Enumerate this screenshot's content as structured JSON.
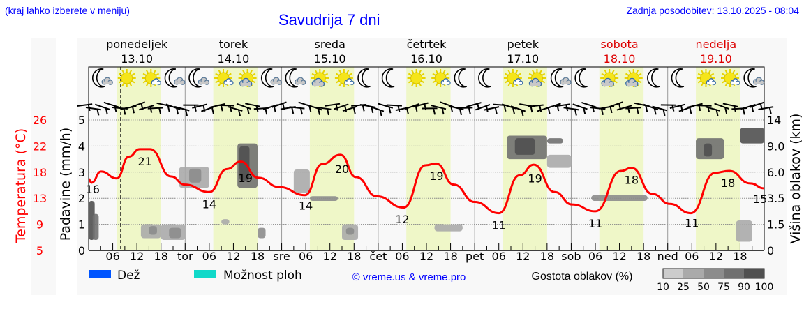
{
  "header": {
    "hint": "(kraj lahko izberete v meniju)",
    "title": "Savudrija 7 dni",
    "updated": "Zadnja posodobitev: 13.10.2025 - 08:04"
  },
  "colors": {
    "temperature": "#ff0000",
    "daylight": "#eff7c8",
    "rain": "#0055ff",
    "showers": "#11d9c9",
    "link": "#0000ff",
    "weekend": "#dd0000"
  },
  "days": [
    {
      "name": "ponedeljek",
      "date": "13.10",
      "abbr": "",
      "weekend": false,
      "icons": [
        "moon-cloud",
        "sun",
        "sun-cloud-small",
        "moon-cloud"
      ]
    },
    {
      "name": "torek",
      "date": "14.10",
      "abbr": "tor",
      "weekend": false,
      "icons": [
        "moon-cloud",
        "sun-cloud-small",
        "sun-cloud-gray",
        "moon-cloud"
      ]
    },
    {
      "name": "sreda",
      "date": "15.10",
      "abbr": "sre",
      "weekend": false,
      "icons": [
        "moon-cloud",
        "sun-cloud-gray",
        "sun-cloud-small",
        "moon"
      ]
    },
    {
      "name": "četrtek",
      "date": "16.10",
      "abbr": "čet",
      "weekend": false,
      "icons": [
        "moon",
        "sun",
        "sun-cloud-small",
        "moon"
      ]
    },
    {
      "name": "petek",
      "date": "17.10",
      "abbr": "pet",
      "weekend": false,
      "icons": [
        "moon",
        "sun-cloud-small",
        "sun-cloud-gray",
        "moon-cloud"
      ]
    },
    {
      "name": "sobota",
      "date": "18.10",
      "abbr": "sob",
      "weekend": true,
      "icons": [
        "moon",
        "sun-cloud-gray",
        "sun-cloud-gray",
        "moon"
      ]
    },
    {
      "name": "nedelja",
      "date": "19.10",
      "abbr": "ned",
      "weekend": true,
      "icons": [
        "moon",
        "sun-cloud-small",
        "sun-cloud-small",
        "moon-cloud"
      ]
    }
  ],
  "chart_data": {
    "type": "line",
    "title": "Savudrija 7 dni",
    "x_unit": "hours from 13.10 00:00",
    "x_range": [
      0,
      168
    ],
    "hour_ticks": [
      "06",
      "12",
      "18"
    ],
    "current_time_hour": 8,
    "daylight_hours": [
      7,
      18
    ],
    "left_axis_temp": {
      "label": "Temperatura (°C)",
      "range": [
        5,
        26
      ],
      "ticks": [
        "26",
        "22",
        "18",
        "13",
        "9",
        "5"
      ]
    },
    "left_axis_precip": {
      "label": "Padavine (mm/h)",
      "range": [
        0,
        5
      ],
      "ticks": [
        "5",
        "4",
        "3",
        "2",
        "1",
        "0"
      ]
    },
    "right_axis_cloud": {
      "label": "Višina oblakov (km)",
      "ticks": [
        "14",
        "9.0",
        "6.0",
        "3.5",
        "1.5",
        "0"
      ],
      "tick_values_km": [
        14,
        9,
        6,
        3.5,
        1.5,
        0
      ]
    },
    "temperature": {
      "hours": [
        0,
        0.7,
        3.1,
        7,
        10,
        12.7,
        15.3,
        20.5,
        23.9,
        30,
        34.4,
        37.8,
        42.2,
        47.4,
        53.8,
        58.1,
        62.6,
        66.5,
        71.7,
        78.3,
        83.8,
        86.4,
        90.8,
        96,
        102,
        107.2,
        110.7,
        115.9,
        120.2,
        126,
        132.4,
        135,
        140.2,
        144.5,
        149.7,
        155.8,
        159.3,
        164.5,
        168
      ],
      "values": [
        16.5,
        15.9,
        17.7,
        16.6,
        20.1,
        21.3,
        21.3,
        16.9,
        15.6,
        14.4,
        18.1,
        19.3,
        16.7,
        15.2,
        13.9,
        18.9,
        20.4,
        16.8,
        13.7,
        11.9,
        18.7,
        19,
        15.6,
        12.8,
        11,
        17.1,
        18.8,
        14.4,
        12.4,
        11.3,
        17.8,
        18.3,
        14.1,
        12.5,
        11,
        17.5,
        17.8,
        15.8,
        15
      ]
    },
    "temperature_labels": [
      {
        "hour": 1,
        "value": "16",
        "pos": "above"
      },
      {
        "hour": 14,
        "value": "21",
        "pos": "below"
      },
      {
        "hour": 30,
        "value": "14",
        "pos": "below"
      },
      {
        "hour": 39,
        "value": "19",
        "pos": "below"
      },
      {
        "hour": 54,
        "value": "14",
        "pos": "below"
      },
      {
        "hour": 63,
        "value": "20",
        "pos": "below"
      },
      {
        "hour": 78,
        "value": "12",
        "pos": "below"
      },
      {
        "hour": 86.5,
        "value": "19",
        "pos": "below"
      },
      {
        "hour": 102,
        "value": "11",
        "pos": "below"
      },
      {
        "hour": 111,
        "value": "19",
        "pos": "below"
      },
      {
        "hour": 126,
        "value": "11",
        "pos": "below"
      },
      {
        "hour": 135,
        "value": "18",
        "pos": "below"
      },
      {
        "hour": 150,
        "value": "11",
        "pos": "below"
      },
      {
        "hour": 159,
        "value": "18",
        "pos": "below"
      },
      {
        "hour": 167,
        "value": "15",
        "pos": "below"
      }
    ],
    "clouds": [
      {
        "h0": 0,
        "h1": 1.5,
        "km0": 0.6,
        "km1": 3.3,
        "density": 90
      },
      {
        "h0": 1,
        "h1": 2.5,
        "km0": 0.6,
        "km1": 2.3,
        "density": 75
      },
      {
        "h0": 13,
        "h1": 18,
        "km0": 0.7,
        "km1": 1.5,
        "density": 25
      },
      {
        "h0": 15,
        "h1": 17,
        "km0": 0.9,
        "km1": 1.4,
        "density": 50
      },
      {
        "h0": 18,
        "h1": 24,
        "km0": 0.6,
        "km1": 1.5,
        "density": 25
      },
      {
        "h0": 20,
        "h1": 23,
        "km0": 0.7,
        "km1": 1.3,
        "density": 50
      },
      {
        "h0": 22.5,
        "h1": 30,
        "km0": 4.5,
        "km1": 6.6,
        "density": 25
      },
      {
        "h0": 25,
        "h1": 28,
        "km0": 5,
        "km1": 6.4,
        "density": 50
      },
      {
        "h0": 33,
        "h1": 35,
        "km0": 1.5,
        "km1": 1.9,
        "density": 25
      },
      {
        "h0": 37,
        "h1": 42,
        "km0": 4.5,
        "km1": 9.5,
        "density": 75
      },
      {
        "h0": 37.5,
        "h1": 40,
        "km0": 5.2,
        "km1": 9,
        "density": 90
      },
      {
        "h0": 42,
        "h1": 44,
        "km0": 0.7,
        "km1": 1.3,
        "density": 50
      },
      {
        "h0": 51,
        "h1": 55,
        "km0": 4,
        "km1": 6.3,
        "density": 25
      },
      {
        "h0": 55,
        "h1": 62,
        "km0": 3.3,
        "km1": 3.7,
        "density": 50
      },
      {
        "h0": 63,
        "h1": 67,
        "km0": 0.6,
        "km1": 1.5,
        "density": 25
      },
      {
        "h0": 64,
        "h1": 66,
        "km0": 0.9,
        "km1": 1.3,
        "density": 50
      },
      {
        "h0": 86,
        "h1": 93,
        "km0": 1.1,
        "km1": 1.5,
        "density": 25
      },
      {
        "h0": 104,
        "h1": 114,
        "km0": 7.5,
        "km1": 11,
        "density": 75
      },
      {
        "h0": 106,
        "h1": 111,
        "km0": 8,
        "km1": 10.5,
        "density": 90
      },
      {
        "h0": 114,
        "h1": 118,
        "km0": 9.5,
        "km1": 10.5,
        "density": 75
      },
      {
        "h0": 114,
        "h1": 120,
        "km0": 6.5,
        "km1": 8,
        "density": 25
      },
      {
        "h0": 125,
        "h1": 139,
        "km0": 3.3,
        "km1": 3.8,
        "density": 50
      },
      {
        "h0": 151,
        "h1": 158,
        "km0": 7.5,
        "km1": 10.5,
        "density": 75
      },
      {
        "h0": 153,
        "h1": 155,
        "km0": 7.8,
        "km1": 9.5,
        "density": 90
      },
      {
        "h0": 162,
        "h1": 168,
        "km0": 9.5,
        "km1": 12.5,
        "density": 90
      },
      {
        "h0": 161,
        "h1": 165,
        "km0": 0.5,
        "km1": 1.8,
        "density": 25
      }
    ]
  },
  "legend": {
    "rain": "Dež",
    "showers": "Možnost ploh",
    "copyright": "© vreme.us & vreme.pro",
    "cloud_density_label": "Gostota oblakov (%)",
    "cloud_density_steps": [
      "10",
      "25",
      "50",
      "75",
      "90",
      "100"
    ],
    "cloud_density_colors": [
      "#cccccc",
      "#aaaaaa",
      "#8c8c8c",
      "#707070",
      "#505050"
    ]
  }
}
